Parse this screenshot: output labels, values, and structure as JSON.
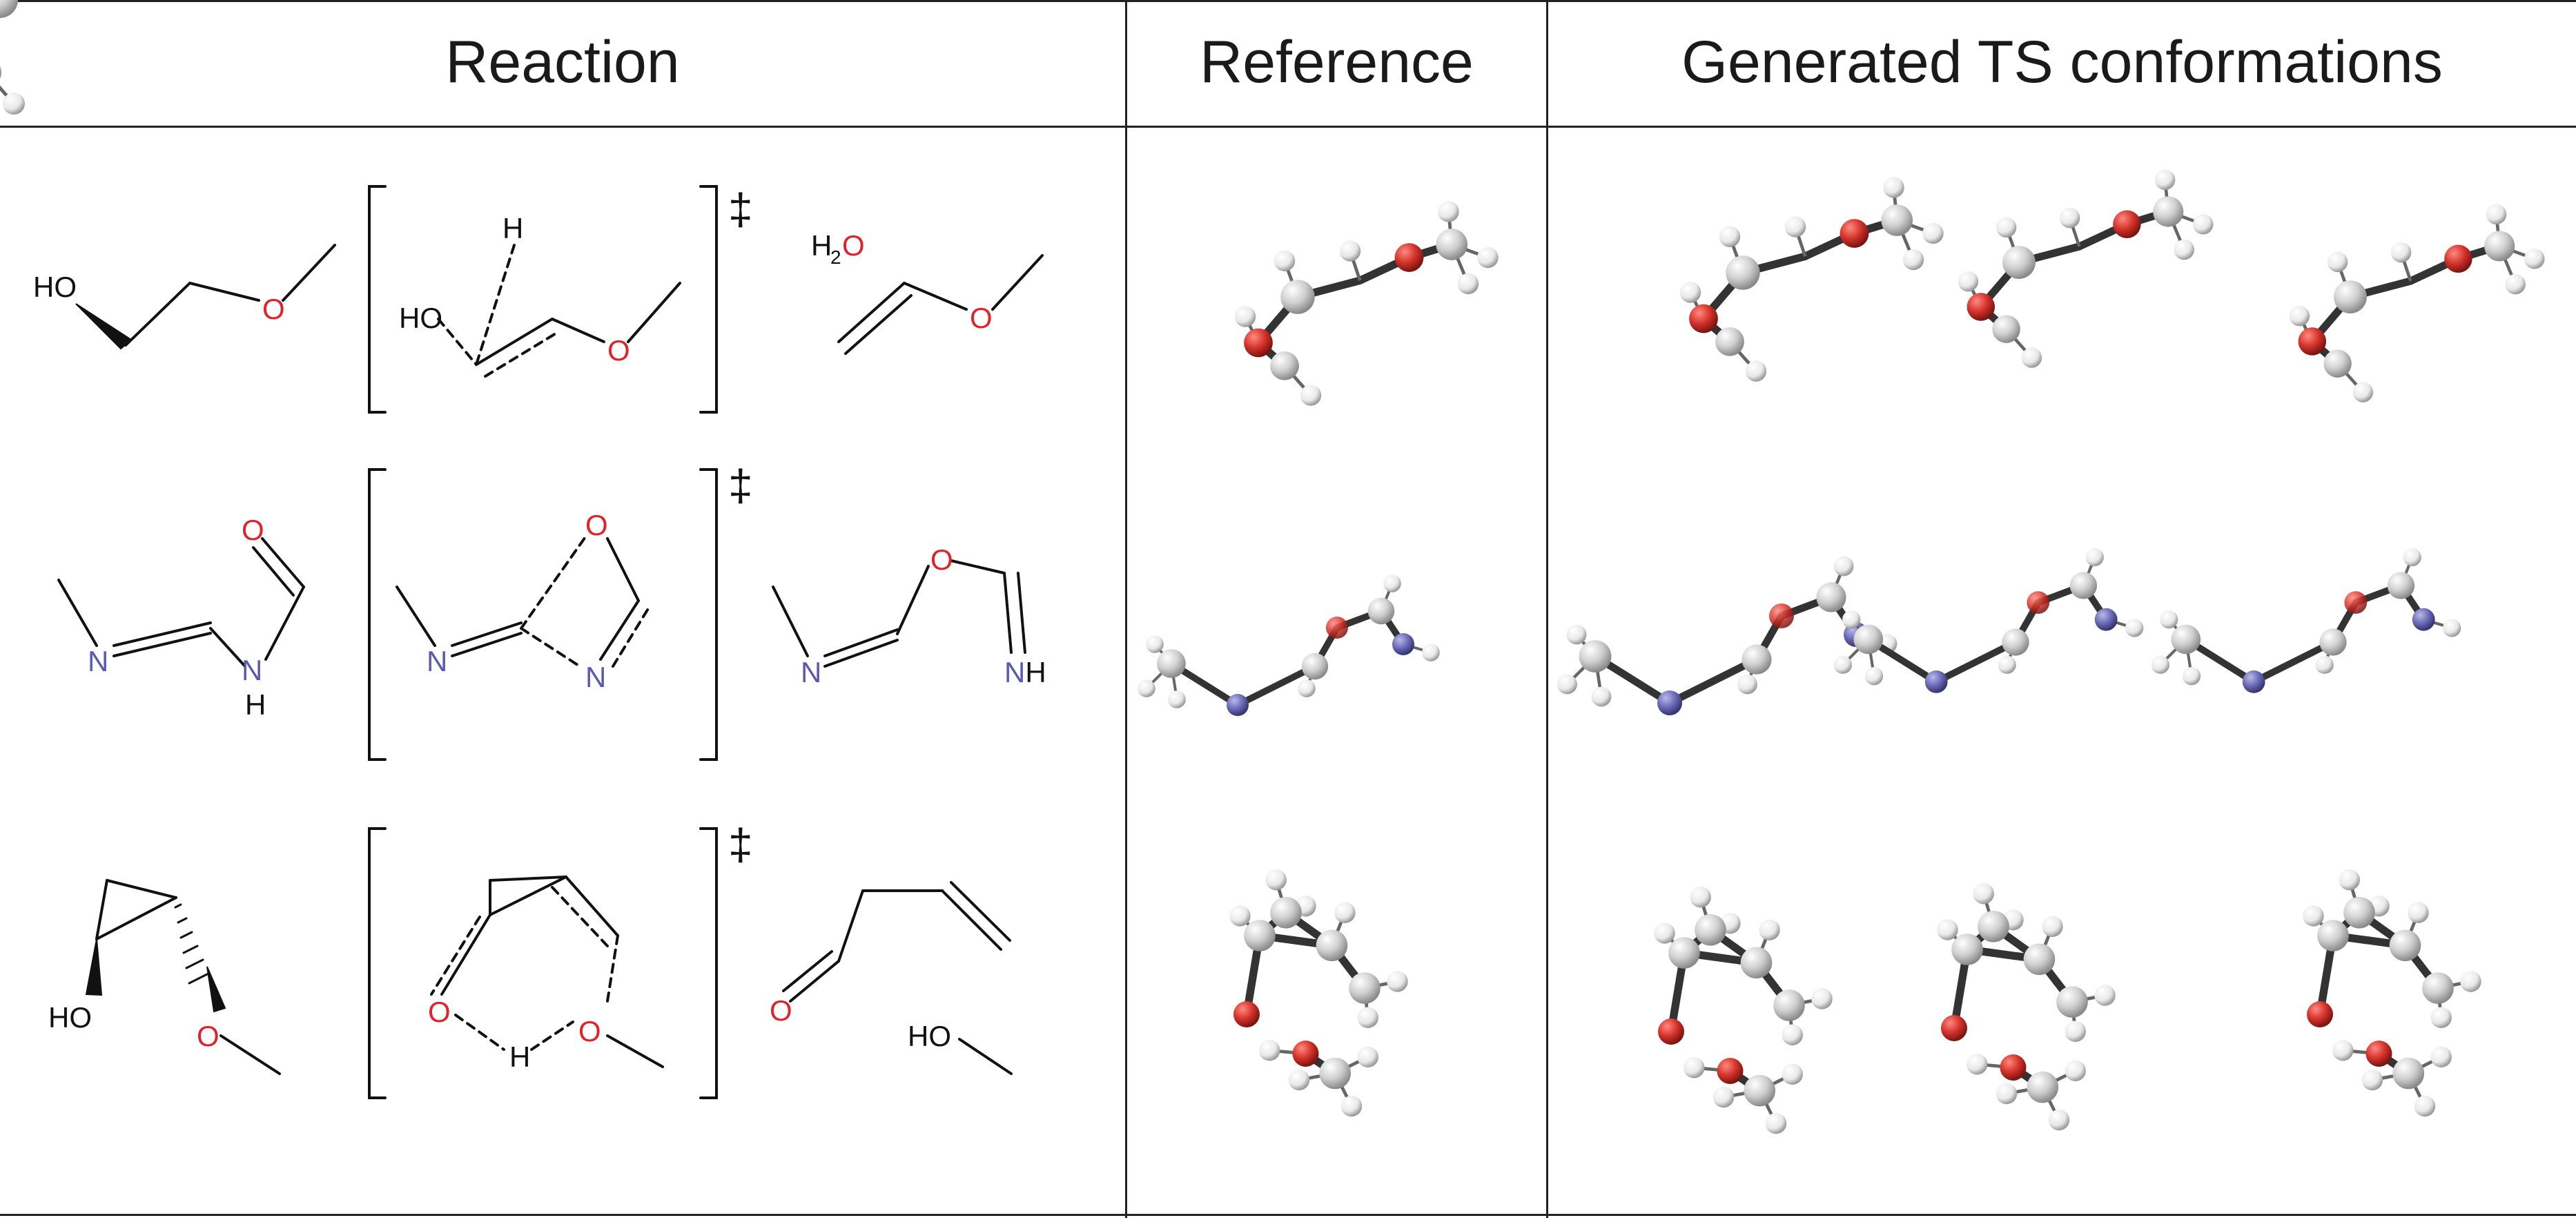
{
  "headers": {
    "reaction": "Reaction",
    "reference": "Reference",
    "generated": "Generated TS conformations"
  },
  "ts_symbol": "‡",
  "labels": {
    "HO": "HO",
    "O": "O",
    "H": "H",
    "N": "N",
    "NH": "NH",
    "H2": "H",
    "two": "2"
  },
  "colors": {
    "oxygen": "#e0222a",
    "nitrogen": "#5a5ab0",
    "carbon_bond": "#111111",
    "atom_oxygen": "#d9362f",
    "atom_nitrogen": "#6a6ab8",
    "atom_carbon": "#d8d8d8",
    "atom_hydrogen": "#f0f0f0"
  }
}
